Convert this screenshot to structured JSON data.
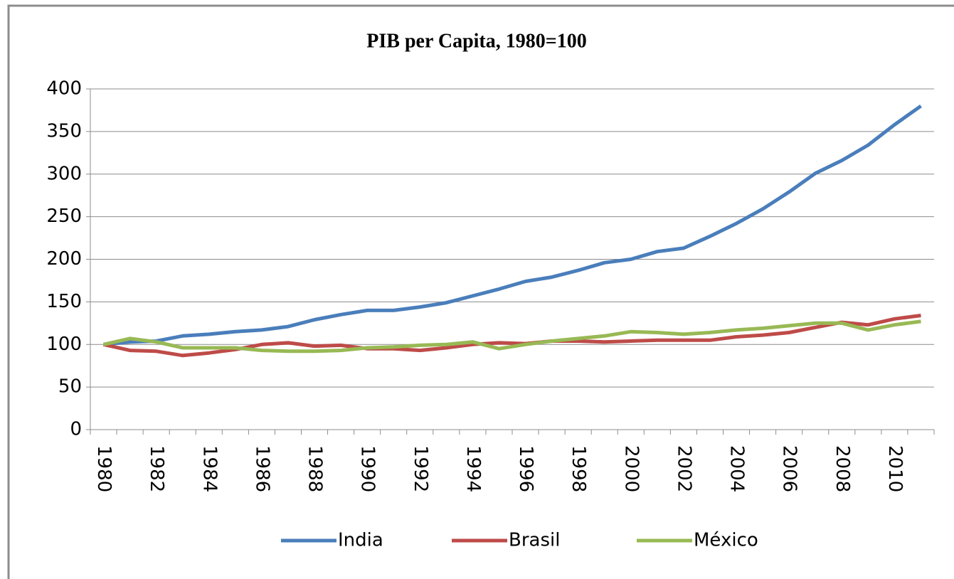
{
  "chart_data": {
    "type": "line",
    "title": "PIB per Capita, 1980=100",
    "categories": [
      "1980",
      null,
      "1982",
      null,
      "1984",
      null,
      "1986",
      null,
      "1988",
      null,
      "1990",
      null,
      "1992",
      null,
      "1994",
      null,
      "1996",
      null,
      "1998",
      null,
      "2000",
      null,
      "2002",
      null,
      "2004",
      null,
      "2006",
      null,
      "2008",
      null,
      "2010",
      null
    ],
    "series": [
      {
        "name": "India",
        "color": "#4a7ebb",
        "values": [
          100,
          103,
          104,
          110,
          112,
          115,
          117,
          121,
          129,
          135,
          140,
          140,
          144,
          149,
          157,
          165,
          174,
          179,
          187,
          196,
          200,
          209,
          213,
          227,
          242,
          259,
          279,
          301,
          316,
          334,
          358,
          380
        ]
      },
      {
        "name": "Brasil",
        "color": "#be4b48",
        "values": [
          100,
          93,
          92,
          87,
          90,
          94,
          100,
          102,
          98,
          99,
          95,
          95,
          93,
          96,
          100,
          102,
          101,
          104,
          104,
          103,
          104,
          105,
          105,
          105,
          109,
          111,
          114,
          120,
          126,
          123,
          130,
          134
        ]
      },
      {
        "name": "México",
        "color": "#98b954",
        "values": [
          100,
          107,
          103,
          96,
          96,
          96,
          93,
          92,
          92,
          93,
          96,
          97,
          99,
          100,
          103,
          95,
          100,
          104,
          107,
          110,
          115,
          114,
          112,
          114,
          117,
          119,
          122,
          125,
          125,
          117,
          123,
          127
        ]
      }
    ],
    "ylim": [
      0,
      400
    ],
    "yticks": [
      0,
      50,
      100,
      150,
      200,
      250,
      300,
      350,
      400
    ],
    "grid": true,
    "legend": "bottom"
  }
}
